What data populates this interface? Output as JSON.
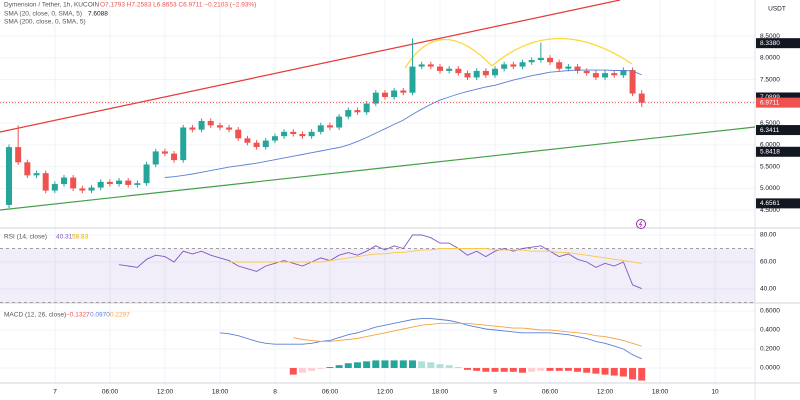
{
  "chart_data": [
    {
      "type": "candlestick",
      "symbol": "Dymension / Tether, 1h, KUCOIN",
      "ohlc_text": "O7.1793 H7.2583 L6.8653 C6.9711 −0.2103 (−2.93%)",
      "currency": "USDT",
      "open": [
        4.62,
        5.95,
        5.6,
        5.3,
        5.35,
        4.95,
        5.1,
        5.25,
        5.0,
        4.95,
        5.02,
        5.15,
        5.1,
        5.18,
        5.08,
        5.12,
        5.55,
        5.85,
        5.8,
        5.65,
        6.4,
        6.35,
        6.55,
        6.45,
        6.4,
        6.35,
        6.15,
        6.05,
        5.95,
        6.1,
        6.2,
        6.3,
        6.25,
        6.2,
        6.3,
        6.45,
        6.4,
        6.65,
        6.8,
        6.75,
        6.95,
        7.2,
        7.1,
        7.25,
        7.2,
        7.8,
        7.85,
        7.8,
        7.7,
        7.75,
        7.65,
        7.55,
        7.7,
        7.6,
        7.75,
        7.85,
        7.8,
        7.9,
        7.95,
        8.0,
        7.9,
        7.75,
        7.8,
        7.7,
        7.65,
        7.55,
        7.65,
        7.6,
        7.72,
        7.18
      ],
      "high": [
        6.01,
        6.45,
        5.66,
        5.41,
        5.41,
        5.16,
        5.31,
        5.31,
        5.06,
        5.08,
        5.21,
        5.21,
        5.24,
        5.24,
        5.18,
        5.61,
        5.91,
        5.91,
        5.86,
        6.46,
        6.46,
        6.61,
        6.61,
        6.51,
        6.46,
        6.41,
        6.21,
        6.11,
        6.16,
        6.26,
        6.36,
        6.36,
        6.31,
        6.36,
        6.51,
        6.51,
        6.71,
        6.86,
        6.86,
        7.01,
        7.26,
        7.26,
        7.31,
        7.31,
        8.45,
        7.91,
        7.91,
        7.86,
        7.81,
        7.81,
        7.71,
        7.76,
        7.76,
        7.81,
        7.91,
        7.91,
        7.96,
        8.01,
        8.35,
        8.06,
        7.96,
        7.86,
        7.86,
        7.76,
        7.71,
        7.71,
        7.71,
        7.78,
        7.78,
        7.26
      ],
      "low": [
        4.55,
        5.54,
        5.24,
        5.24,
        4.89,
        4.89,
        5.04,
        4.94,
        4.89,
        4.89,
        4.96,
        5.04,
        5.04,
        5.02,
        5.02,
        5.06,
        5.49,
        5.74,
        5.59,
        5.59,
        6.29,
        6.29,
        6.39,
        6.34,
        6.29,
        6.09,
        5.99,
        5.89,
        5.89,
        6.04,
        6.14,
        6.19,
        6.14,
        6.14,
        6.24,
        6.34,
        6.34,
        6.59,
        6.69,
        6.69,
        6.89,
        7.04,
        7.04,
        7.14,
        7.14,
        7.74,
        7.74,
        7.64,
        7.64,
        7.59,
        7.49,
        7.49,
        7.54,
        7.54,
        7.69,
        7.74,
        7.74,
        7.84,
        7.89,
        7.84,
        7.69,
        7.69,
        7.64,
        7.59,
        7.49,
        7.49,
        7.54,
        7.54,
        7.12,
        6.87
      ],
      "close": [
        5.95,
        5.6,
        5.3,
        5.35,
        4.95,
        5.1,
        5.25,
        5.0,
        4.95,
        5.02,
        5.15,
        5.1,
        5.18,
        5.08,
        5.12,
        5.55,
        5.85,
        5.8,
        5.65,
        6.4,
        6.35,
        6.55,
        6.45,
        6.4,
        6.35,
        6.15,
        6.05,
        5.95,
        6.1,
        6.2,
        6.3,
        6.25,
        6.2,
        6.3,
        6.45,
        6.4,
        6.65,
        6.8,
        6.75,
        6.95,
        7.2,
        7.1,
        7.25,
        7.2,
        7.8,
        7.85,
        7.8,
        7.7,
        7.75,
        7.65,
        7.55,
        7.7,
        7.6,
        7.75,
        7.85,
        7.8,
        7.9,
        7.95,
        8.0,
        7.9,
        7.75,
        7.8,
        7.7,
        7.65,
        7.55,
        7.65,
        7.6,
        7.72,
        7.18,
        6.97
      ],
      "up_color": "#26a69a",
      "down_color": "#ef5350",
      "series": [
        {
          "name": "SMA (20, close, 0, SMA, 5)",
          "value_label": "7.6088",
          "color": "#5b7fd6",
          "values": [
            null,
            null,
            null,
            null,
            null,
            null,
            null,
            null,
            null,
            null,
            null,
            null,
            null,
            null,
            null,
            null,
            null,
            5.25,
            5.27,
            5.3,
            5.33,
            5.37,
            5.41,
            5.45,
            5.49,
            5.52,
            5.55,
            5.58,
            5.62,
            5.66,
            5.7,
            5.74,
            5.78,
            5.82,
            5.86,
            5.9,
            5.94,
            6.0,
            6.08,
            6.17,
            6.27,
            6.37,
            6.47,
            6.57,
            6.7,
            6.82,
            6.93,
            7.03,
            7.1,
            7.17,
            7.23,
            7.28,
            7.33,
            7.37,
            7.43,
            7.49,
            7.54,
            7.59,
            7.63,
            7.67,
            7.69,
            7.71,
            7.72,
            7.72,
            7.72,
            7.72,
            7.71,
            7.71,
            7.7,
            7.6088
          ]
        },
        {
          "name": "SMA (200, close, 0, SMA, 5)",
          "color": "#f59f00",
          "values": []
        }
      ],
      "ylim": [
        4.09,
        9.33
      ],
      "yticks": [
        {
          "value": 4.5,
          "label": "4.5000"
        },
        {
          "value": 5,
          "label": "5.0000"
        },
        {
          "value": 5.5,
          "label": "5.5000"
        },
        {
          "value": 6,
          "label": "6.0000"
        },
        {
          "value": 6.5,
          "label": "6.5000"
        },
        {
          "value": 7,
          "label": "7.0000"
        },
        {
          "value": 7.5,
          "label": "7.5000"
        },
        {
          "value": 8,
          "label": "8.0000"
        },
        {
          "value": 8.5,
          "label": "8.5000"
        }
      ],
      "price_labels": [
        {
          "value": 8.338,
          "label": "8.3380",
          "color": "#131722"
        },
        {
          "value": 7.0899,
          "label": "7.0899",
          "color": "#131722"
        },
        {
          "value": 6.9711,
          "label": "6.9711",
          "color": "#ef5350"
        },
        {
          "value": 6.3411,
          "label": "6.3411",
          "color": "#131722"
        },
        {
          "value": 5.8418,
          "label": "5.8418",
          "color": "#131722"
        },
        {
          "value": 4.6561,
          "label": "4.6561",
          "color": "#131722"
        }
      ],
      "time_labels": [
        "7",
        "06:00",
        "12:00",
        "18:00",
        "8",
        "06:00",
        "12:00",
        "18:00",
        "9",
        "06:00",
        "12:00",
        "18:00",
        "10"
      ]
    },
    {
      "type": "line",
      "legend": "RSI (14, close)",
      "series": [
        {
          "name": "RSI",
          "value_label": "40.31",
          "color": "#7e57c2",
          "values": [
            null,
            null,
            null,
            null,
            null,
            null,
            null,
            null,
            null,
            null,
            null,
            null,
            58,
            57,
            56,
            62,
            65,
            64,
            60,
            68,
            66,
            68,
            65,
            63,
            61,
            57,
            55,
            53,
            57,
            59,
            61,
            59,
            57,
            60,
            63,
            61,
            65,
            67,
            65,
            68,
            72,
            69,
            72,
            70,
            80,
            80,
            78,
            74,
            74,
            70,
            65,
            68,
            64,
            68,
            70,
            68,
            70,
            71,
            72,
            68,
            64,
            66,
            62,
            60,
            56,
            59,
            57,
            60,
            43,
            40.31
          ]
        },
        {
          "name": "RSI MA",
          "value_label": "58.83",
          "color": "#f7c948",
          "values": [
            null,
            null,
            null,
            null,
            null,
            null,
            null,
            null,
            null,
            null,
            null,
            null,
            null,
            null,
            null,
            null,
            null,
            null,
            null,
            null,
            null,
            null,
            null,
            null,
            60,
            60,
            60,
            60,
            60,
            60,
            60,
            60,
            60,
            60,
            60,
            61,
            62,
            63,
            64,
            65,
            66,
            66,
            67,
            67,
            68,
            69,
            69,
            70,
            70,
            70,
            70,
            70,
            70,
            69,
            69,
            69,
            69,
            68,
            68,
            68,
            67,
            67,
            66,
            65,
            64,
            63,
            62,
            61,
            60,
            58.83
          ]
        }
      ],
      "band": [
        30,
        70
      ],
      "ylim": [
        29.6,
        85.2
      ],
      "yticks": [
        {
          "value": 40,
          "label": "40.00"
        },
        {
          "value": 60,
          "label": "60.00"
        },
        {
          "value": 80,
          "label": "80.00"
        }
      ]
    },
    {
      "type": "macd",
      "legend": "MACD (12, 26, close)",
      "histogram": {
        "name": "Histogram",
        "value_label": "−0.1327",
        "values": [
          null,
          null,
          null,
          null,
          null,
          null,
          null,
          null,
          null,
          null,
          null,
          null,
          null,
          null,
          null,
          null,
          null,
          null,
          null,
          null,
          null,
          null,
          null,
          null,
          null,
          null,
          null,
          null,
          null,
          null,
          null,
          -0.07,
          -0.05,
          -0.03,
          -0.01,
          0.01,
          0.03,
          0.05,
          0.06,
          0.07,
          0.08,
          0.08,
          0.08,
          0.08,
          0.08,
          0.07,
          0.06,
          0.04,
          0.03,
          0.01,
          -0.02,
          -0.03,
          -0.04,
          -0.04,
          -0.04,
          -0.04,
          -0.05,
          -0.04,
          -0.03,
          -0.03,
          -0.03,
          -0.03,
          -0.04,
          -0.05,
          -0.06,
          -0.07,
          -0.08,
          -0.09,
          -0.12,
          -0.1327
        ]
      },
      "series": [
        {
          "name": "MACD",
          "value_label": "0.0970",
          "color": "#5b7fd6",
          "values": [
            null,
            null,
            null,
            null,
            null,
            null,
            null,
            null,
            null,
            null,
            null,
            null,
            null,
            null,
            null,
            null,
            null,
            null,
            null,
            null,
            null,
            null,
            null,
            0.37,
            0.36,
            0.34,
            0.31,
            0.28,
            0.26,
            0.25,
            0.25,
            0.25,
            0.25,
            0.26,
            0.28,
            0.29,
            0.32,
            0.35,
            0.37,
            0.4,
            0.43,
            0.45,
            0.47,
            0.49,
            0.51,
            0.52,
            0.52,
            0.51,
            0.5,
            0.48,
            0.45,
            0.43,
            0.41,
            0.4,
            0.39,
            0.38,
            0.37,
            0.37,
            0.37,
            0.37,
            0.36,
            0.35,
            0.33,
            0.31,
            0.28,
            0.26,
            0.23,
            0.2,
            0.14,
            0.097
          ]
        },
        {
          "name": "Signal",
          "value_label": "0.2297",
          "color": "#f7a341",
          "values": [
            null,
            null,
            null,
            null,
            null,
            null,
            null,
            null,
            null,
            null,
            null,
            null,
            null,
            null,
            null,
            null,
            null,
            null,
            null,
            null,
            null,
            null,
            null,
            null,
            null,
            null,
            null,
            null,
            null,
            null,
            null,
            0.32,
            0.3,
            0.29,
            0.28,
            0.28,
            0.29,
            0.3,
            0.31,
            0.33,
            0.35,
            0.37,
            0.39,
            0.41,
            0.43,
            0.45,
            0.46,
            0.47,
            0.47,
            0.47,
            0.47,
            0.46,
            0.45,
            0.44,
            0.43,
            0.42,
            0.42,
            0.41,
            0.4,
            0.4,
            0.39,
            0.38,
            0.37,
            0.36,
            0.34,
            0.33,
            0.31,
            0.29,
            0.26,
            0.2297
          ]
        }
      ],
      "ylim": [
        -0.158,
        0.684
      ],
      "yticks": [
        {
          "value": 0,
          "label": "0.0000"
        },
        {
          "value": 0.2,
          "label": "0.2000"
        },
        {
          "value": 0.4,
          "label": "0.4000"
        },
        {
          "value": 0.6,
          "label": "0.6000"
        }
      ]
    }
  ]
}
